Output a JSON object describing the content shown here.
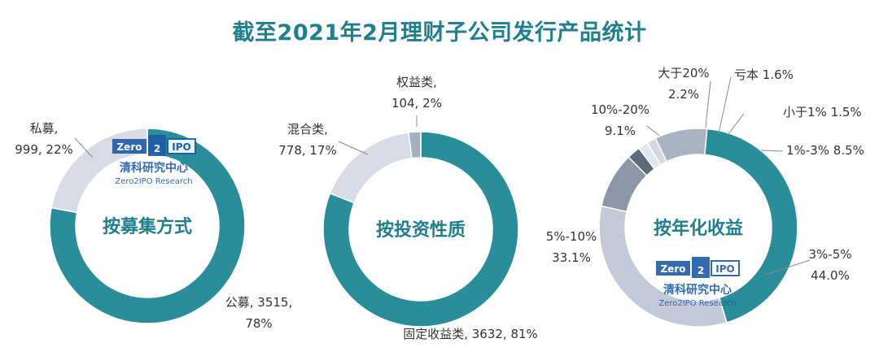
{
  "title": "截至2021年2月理财子公司发行产品统计",
  "watermark": {
    "logo_left": "Zero",
    "logo_mid": "2",
    "logo_right": "IPO",
    "cn": "清科研究中心",
    "en": "Zero2IPO Research"
  },
  "chart_data": [
    {
      "type": "pie",
      "donut": true,
      "center_label": "按募集方式",
      "slices": [
        {
          "name": "公募",
          "value": 3515,
          "percent": 78,
          "color": "#2a8e9a",
          "label_lines": [
            "公募, 3515,",
            "78%"
          ]
        },
        {
          "name": "私募",
          "value": 999,
          "percent": 22,
          "color": "#d7dbe6",
          "label_lines": [
            "私募,",
            "999, 22%"
          ]
        }
      ]
    },
    {
      "type": "pie",
      "donut": true,
      "center_label": "按投资性质",
      "slices": [
        {
          "name": "固定收益类",
          "value": 3632,
          "percent": 81,
          "color": "#2a8e9a",
          "label_lines": [
            "固定收益类, 3632, 81%"
          ]
        },
        {
          "name": "混合类",
          "value": 778,
          "percent": 17,
          "color": "#d7dbe6",
          "label_lines": [
            "混合类,",
            "778, 17%"
          ]
        },
        {
          "name": "权益类",
          "value": 104,
          "percent": 2,
          "color": "#a7b1bd",
          "label_lines": [
            "权益类,",
            "104, 2%"
          ]
        }
      ]
    },
    {
      "type": "pie",
      "donut": true,
      "center_label": "按年化收益",
      "slices": [
        {
          "name": "3%-5%",
          "percent": 44.0,
          "color": "#2a8e9a",
          "label_lines": [
            "3%-5%",
            "44.0%"
          ]
        },
        {
          "name": "5%-10%",
          "percent": 33.1,
          "color": "#c3c9d6",
          "label_lines": [
            "5%-10%",
            "33.1%"
          ]
        },
        {
          "name": "10%-20%",
          "percent": 9.1,
          "color": "#8b97a6",
          "label_lines": [
            "10%-20%",
            "9.1%"
          ]
        },
        {
          "name": "大于20%",
          "percent": 2.2,
          "color": "#5e6b7a",
          "label_lines": [
            "大于20%",
            "2.2%"
          ]
        },
        {
          "name": "亏本",
          "percent": 1.6,
          "color": "#e3e6ee",
          "label_lines": [
            "亏本 1.6%"
          ]
        },
        {
          "name": "小于1%",
          "percent": 1.5,
          "color": "#d3d8e2",
          "label_lines": [
            "小于1% 1.5%"
          ]
        },
        {
          "name": "1%-3%",
          "percent": 8.5,
          "color": "#a8b2c0",
          "label_lines": [
            "1%-3% 8.5%"
          ]
        }
      ]
    }
  ]
}
